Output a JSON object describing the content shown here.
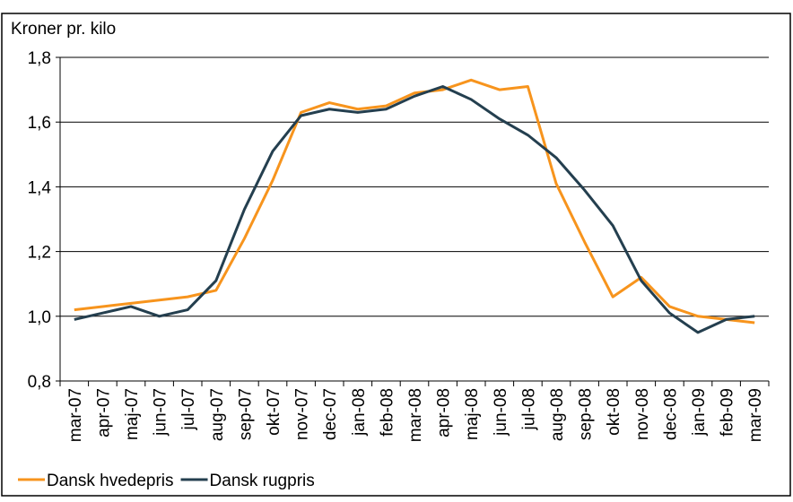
{
  "chart_data": {
    "type": "line",
    "y_axis_label": "Kroner pr. kilo",
    "categories": [
      "mar-07",
      "apr-07",
      "maj-07",
      "jun-07",
      "jul-07",
      "aug-07",
      "sep-07",
      "okt-07",
      "nov-07",
      "dec-07",
      "jan-08",
      "feb-08",
      "mar-08",
      "apr-08",
      "maj-08",
      "jun-08",
      "jul-08",
      "aug-08",
      "sep-08",
      "okt-08",
      "nov-08",
      "dec-08",
      "jan-09",
      "feb-09",
      "mar-09"
    ],
    "series": [
      {
        "name": "Dansk hvedepris",
        "color": "#f7941d",
        "values": [
          1.02,
          1.03,
          1.04,
          1.05,
          1.06,
          1.08,
          1.24,
          1.42,
          1.63,
          1.66,
          1.64,
          1.65,
          1.69,
          1.7,
          1.73,
          1.7,
          1.71,
          1.41,
          1.23,
          1.06,
          1.12,
          1.03,
          1.0,
          0.99,
          0.98
        ]
      },
      {
        "name": "Dansk rugpris",
        "color": "#243f4f",
        "values": [
          0.99,
          1.01,
          1.03,
          1.0,
          1.02,
          1.11,
          1.33,
          1.51,
          1.62,
          1.64,
          1.63,
          1.64,
          1.68,
          1.71,
          1.67,
          1.61,
          1.56,
          1.49,
          1.39,
          1.28,
          1.11,
          1.01,
          0.95,
          0.99,
          1.0
        ]
      }
    ],
    "ylim": [
      0.8,
      1.8
    ],
    "yticks": [
      {
        "value": 0.8,
        "label": "0,8"
      },
      {
        "value": 1.0,
        "label": "1,0"
      },
      {
        "value": 1.2,
        "label": "1,2"
      },
      {
        "value": 1.4,
        "label": "1,4"
      },
      {
        "value": 1.6,
        "label": "1,6"
      },
      {
        "value": 1.8,
        "label": "1,8"
      }
    ],
    "grid": true
  }
}
